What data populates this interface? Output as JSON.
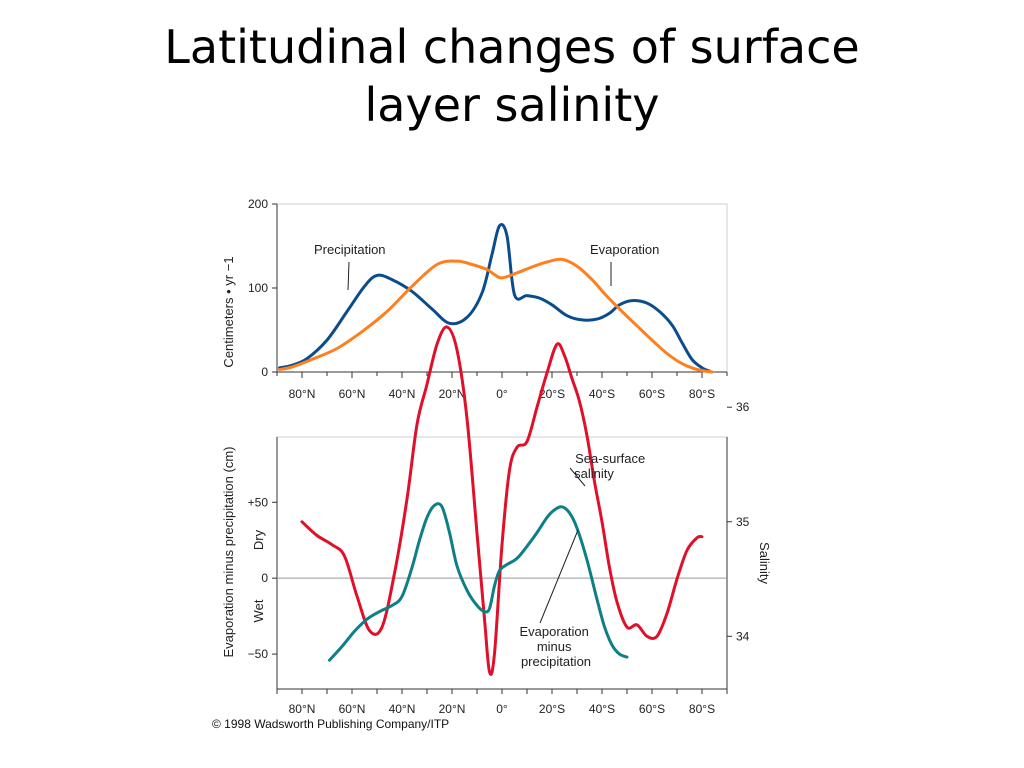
{
  "title": {
    "line1": "Latitudinal changes of surface",
    "line2": "layer salinity"
  },
  "copyright": "© 1998 Wadsworth Publishing Company/ITP",
  "colors": {
    "precipitation": "#0b4c8c",
    "evaporation": "#ff7f1e",
    "salinity": "#e0102a",
    "e_minus_p": "#0e7f86",
    "axis": "#333333",
    "zero_line": "#999999"
  },
  "chart_data": [
    {
      "type": "line",
      "ylabel": "Centimeters • yr −1",
      "ylim": [
        0,
        200
      ],
      "yticks": [
        0,
        100,
        200
      ],
      "xlim": [
        90,
        -90
      ],
      "xticks": [
        {
          "value": 80,
          "label": "80°N"
        },
        {
          "value": 60,
          "label": "60°N"
        },
        {
          "value": 40,
          "label": "40°N"
        },
        {
          "value": 20,
          "label": "20°N"
        },
        {
          "value": 0,
          "label": "0°"
        },
        {
          "value": -20,
          "label": "20°S"
        },
        {
          "value": -40,
          "label": "40°S"
        },
        {
          "value": -60,
          "label": "60°S"
        },
        {
          "value": -80,
          "label": "80°S"
        }
      ],
      "grid": false,
      "annotations": [
        "Precipitation",
        "Evaporation"
      ],
      "series": [
        {
          "name": "Precipitation",
          "x": [
            89,
            84,
            78,
            70,
            62,
            55,
            50,
            44,
            36,
            28,
            21,
            14,
            8,
            4,
            1,
            -2,
            -5,
            -10,
            -15,
            -20,
            -26,
            -32,
            -38,
            -43,
            -47,
            -52,
            -58,
            -63,
            -68,
            -72,
            -76,
            -80,
            -83
          ],
          "y": [
            5,
            8,
            16,
            38,
            72,
            102,
            115,
            110,
            96,
            75,
            58,
            65,
            94,
            140,
            174,
            162,
            92,
            91,
            88,
            80,
            67,
            62,
            63,
            70,
            80,
            85,
            82,
            72,
            56,
            35,
            15,
            5,
            1
          ]
        },
        {
          "name": "Evaporation",
          "x": [
            89,
            84,
            76,
            66,
            56,
            46,
            36,
            26,
            18,
            12,
            6,
            3,
            0,
            -6,
            -12,
            -18,
            -24,
            -30,
            -36,
            -42,
            -48,
            -54,
            -60,
            -66,
            -72,
            -78,
            -84
          ],
          "y": [
            3,
            6,
            15,
            28,
            48,
            72,
            102,
            128,
            132,
            128,
            122,
            116,
            112,
            118,
            125,
            131,
            134,
            126,
            110,
            90,
            72,
            55,
            38,
            22,
            10,
            3,
            0
          ]
        }
      ]
    },
    {
      "type": "line",
      "ylabel": "Evaporation minus precipitation (cm)",
      "ylabel_right": "Salinity",
      "left_side_labels": [
        "Dry",
        "Wet"
      ],
      "yticks": [
        {
          "value": 50,
          "label": "+50"
        },
        {
          "value": 0,
          "label": "0"
        },
        {
          "value": -50,
          "label": "−50"
        }
      ],
      "ylim": [
        -73,
        93
      ],
      "right_yticks": [
        34,
        35,
        36
      ],
      "right_ylim": [
        33.54,
        35.74
      ],
      "xlim": [
        90,
        -90
      ],
      "xticks": [
        {
          "value": 80,
          "label": "80°N"
        },
        {
          "value": 60,
          "label": "60°N"
        },
        {
          "value": 40,
          "label": "40°N"
        },
        {
          "value": 20,
          "label": "20°N"
        },
        {
          "value": 0,
          "label": "0°"
        },
        {
          "value": -20,
          "label": "20°S"
        },
        {
          "value": -40,
          "label": "40°S"
        },
        {
          "value": -60,
          "label": "60°S"
        },
        {
          "value": -80,
          "label": "80°S"
        }
      ],
      "grid": false,
      "annotations": [
        "Sea-surface salinity",
        "Evaporation minus precipitation"
      ],
      "series": [
        {
          "name": "Sea-surface salinity",
          "axis": "right",
          "x": [
            80,
            74,
            68,
            63,
            58,
            53,
            48,
            43,
            38,
            34,
            30,
            26,
            22,
            18,
            14,
            10,
            7,
            5,
            3,
            0,
            -3,
            -6,
            -10,
            -14,
            -18,
            -22,
            -25,
            -28,
            -31,
            -34,
            -37,
            -40,
            -43,
            -46,
            -50,
            -54,
            -58,
            -62,
            -66,
            -70,
            -74,
            -78,
            -80
          ],
          "y": [
            35.0,
            34.88,
            34.8,
            34.7,
            34.35,
            34.05,
            34.08,
            34.55,
            35.2,
            35.85,
            36.2,
            36.55,
            36.7,
            36.5,
            35.9,
            34.9,
            34.15,
            33.69,
            33.85,
            34.8,
            35.45,
            35.65,
            35.7,
            36.0,
            36.3,
            36.55,
            36.45,
            36.25,
            36.05,
            35.75,
            35.35,
            35.0,
            34.6,
            34.3,
            34.08,
            34.1,
            34.0,
            34.0,
            34.2,
            34.5,
            34.75,
            34.86,
            34.87
          ]
        },
        {
          "name": "Evaporation minus precipitation",
          "axis": "left",
          "x": [
            69,
            64,
            59,
            54,
            49,
            44,
            40,
            36,
            33,
            30,
            27,
            24,
            21,
            18,
            14,
            10,
            7,
            5,
            3,
            1,
            -2,
            -6,
            -10,
            -14,
            -18,
            -21,
            -24,
            -27,
            -30,
            -34,
            -38,
            -41,
            -44,
            -47,
            -50
          ],
          "y": [
            -54,
            -45,
            -35,
            -27,
            -22,
            -18,
            -12,
            7,
            25,
            40,
            48,
            47,
            30,
            8,
            -8,
            -18,
            -22,
            -20,
            -5,
            5,
            9,
            13,
            21,
            30,
            40,
            45,
            47,
            43,
            33,
            12,
            -14,
            -32,
            -44,
            -50,
            -52
          ]
        }
      ]
    }
  ]
}
